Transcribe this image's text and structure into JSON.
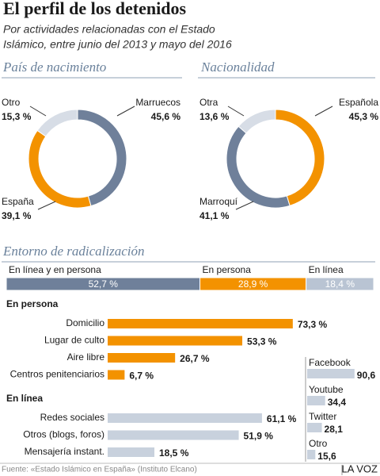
{
  "title": "El perfil de los detenidos",
  "subtitle": [
    "Por actividades relacionadas con el Estado",
    "Islámico, entre junio del 2013 y mayo del 2016"
  ],
  "chart_data": [
    {
      "type": "pie",
      "title": "País de nacimiento",
      "categories": [
        "Marruecos",
        "España",
        "Otro"
      ],
      "values": [
        45.6,
        39.1,
        15.3
      ],
      "value_labels": [
        "45,6 %",
        "39,1 %",
        "15,3 %"
      ],
      "colors": [
        "#6f809a",
        "#f39200",
        "#d7dde6"
      ]
    },
    {
      "type": "pie",
      "title": "Nacionalidad",
      "categories": [
        "Española",
        "Marroquí",
        "Otra"
      ],
      "values": [
        45.3,
        41.1,
        13.6
      ],
      "value_labels": [
        "45,3 %",
        "41,1 %",
        "13,6 %"
      ],
      "colors": [
        "#f39200",
        "#6f809a",
        "#d7dde6"
      ]
    },
    {
      "type": "stacked_bar",
      "title": "Entorno de radicalización",
      "categories": [
        "En línea y en persona",
        "En persona",
        "En línea"
      ],
      "values": [
        52.7,
        28.9,
        18.4
      ],
      "value_labels": [
        "52,7 %",
        "28,9 %",
        "18,4 %"
      ],
      "colors": [
        "#6f809a",
        "#f39200",
        "#b9c4d3"
      ]
    },
    {
      "type": "hbar",
      "title": "En persona",
      "categories": [
        "Domicilio",
        "Lugar de culto",
        "Aire libre",
        "Centros penitenciarios"
      ],
      "values": [
        73.3,
        53.3,
        26.7,
        6.7
      ],
      "value_labels": [
        "73,3 %",
        "53,3 %",
        "26,7 %",
        "6,7 %"
      ],
      "color": "#f39200"
    },
    {
      "type": "hbar",
      "title": "En línea",
      "categories": [
        "Redes sociales",
        "Otros (blogs, foros)",
        "Mensajería instant."
      ],
      "values": [
        61.1,
        51.9,
        18.5
      ],
      "value_labels": [
        "61,1 %",
        "51,9 %",
        "18,5 %"
      ],
      "color": "#c8d1dd"
    },
    {
      "type": "minibar",
      "categories": [
        "Facebook",
        "Youtube",
        "Twitter",
        "Otro"
      ],
      "values": [
        90.6,
        34.4,
        28.1,
        15.6
      ],
      "value_labels": [
        "90,6",
        "34,4",
        "28,1",
        "15,6"
      ],
      "color": "#c8d1dd"
    }
  ],
  "source": "Fuente: «Estado Islámico en España» (Instituto Elcano)",
  "brand": "LA VOZ"
}
